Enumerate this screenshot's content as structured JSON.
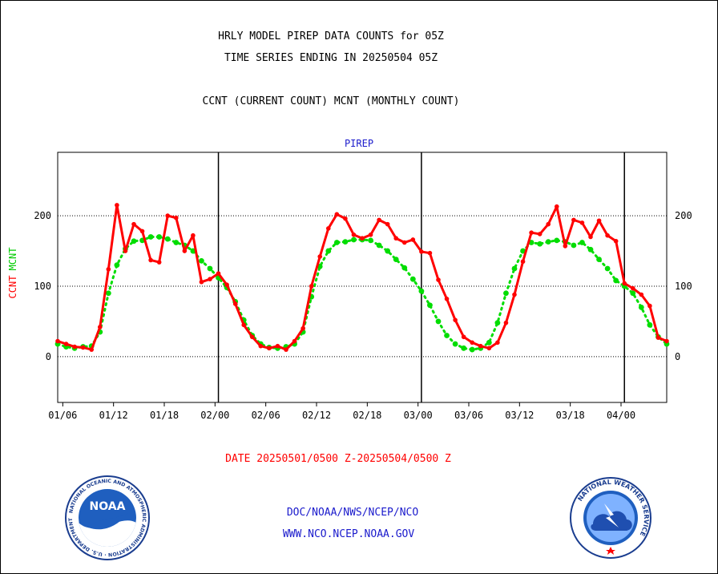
{
  "header": {
    "title_line1": "HRLY MODEL PIREP DATA COUNTS for 05Z",
    "title_line2": "TIME SERIES ENDING IN 20250504 05Z",
    "title_line3": "CCNT (CURRENT COUNT) MCNT (MONTHLY COUNT)",
    "plot_label": "PIREP"
  },
  "ylabel": {
    "ccnt": "CCNT",
    "mcnt": "MCNT"
  },
  "date_range": "DATE 20250501/0500 Z-20250504/0500 Z",
  "footer": {
    "line1": "DOC/NOAA/NWS/NCEP/NCO",
    "line2": "WWW.NCO.NCEP.NOAA.GOV",
    "noaa_logo_text": "NOAA",
    "noaa_ring_text": "NATIONAL OCEANIC AND ATMOSPHERIC ADMINISTRATION · U.S. DEPARTMENT OF COMMERCE",
    "nws_ring_text": "NATIONAL WEATHER SERVICE"
  },
  "colors": {
    "ccnt": "#ff0000",
    "mcnt": "#00dd00",
    "axis": "#000000",
    "text_blue": "#1a1acc"
  },
  "chart_data": {
    "type": "line",
    "xlim": [
      0,
      72
    ],
    "ylim": [
      -65,
      290
    ],
    "yticks": [
      0,
      100,
      200
    ],
    "ytick_labels": [
      "0",
      "100",
      "200"
    ],
    "xticks": [
      {
        "x": 0.6,
        "label": "01/06"
      },
      {
        "x": 6.6,
        "label": "01/12"
      },
      {
        "x": 12.6,
        "label": "01/18"
      },
      {
        "x": 18.6,
        "label": "02/00"
      },
      {
        "x": 24.6,
        "label": "02/06"
      },
      {
        "x": 30.6,
        "label": "02/12"
      },
      {
        "x": 36.6,
        "label": "02/18"
      },
      {
        "x": 42.6,
        "label": "03/00"
      },
      {
        "x": 48.6,
        "label": "03/06"
      },
      {
        "x": 54.6,
        "label": "03/12"
      },
      {
        "x": 60.6,
        "label": "03/18"
      },
      {
        "x": 66.6,
        "label": "04/00"
      }
    ],
    "day_boundaries": [
      19,
      43,
      67
    ],
    "grid_y": [
      0,
      100,
      200
    ],
    "series": [
      {
        "name": "CCNT",
        "color": "#ff0000",
        "x": [
          0,
          1,
          2,
          3,
          4,
          5,
          6,
          7,
          8,
          9,
          10,
          11,
          12,
          13,
          14,
          15,
          16,
          17,
          18,
          19,
          20,
          21,
          22,
          23,
          24,
          25,
          26,
          27,
          28,
          29,
          30,
          31,
          32,
          33,
          34,
          35,
          36,
          37,
          38,
          39,
          40,
          41,
          42,
          43,
          44,
          45,
          46,
          47,
          48,
          49,
          50,
          51,
          52,
          53,
          54,
          55,
          56,
          57,
          58,
          59,
          60,
          61,
          62,
          63,
          64,
          65,
          66,
          67,
          68,
          69,
          70,
          71,
          72
        ],
        "values": [
          22,
          18,
          14,
          13,
          10,
          42,
          124,
          215,
          150,
          188,
          178,
          137,
          134,
          200,
          197,
          150,
          172,
          106,
          110,
          118,
          102,
          75,
          45,
          28,
          15,
          12,
          15,
          10,
          22,
          40,
          100,
          142,
          182,
          202,
          196,
          173,
          168,
          173,
          194,
          188,
          168,
          162,
          166,
          149,
          147,
          109,
          82,
          52,
          28,
          20,
          15,
          12,
          20,
          48,
          88,
          135,
          176,
          174,
          188,
          213,
          157,
          194,
          190,
          170,
          193,
          172,
          164,
          104,
          97,
          88,
          72,
          27,
          22
        ]
      },
      {
        "name": "MCNT",
        "color": "#00dd00",
        "x": [
          0,
          1,
          2,
          3,
          4,
          5,
          6,
          7,
          8,
          9,
          10,
          11,
          12,
          13,
          14,
          15,
          16,
          17,
          18,
          19,
          20,
          21,
          22,
          23,
          24,
          25,
          26,
          27,
          28,
          29,
          30,
          31,
          32,
          33,
          34,
          35,
          36,
          37,
          38,
          39,
          40,
          41,
          42,
          43,
          44,
          45,
          46,
          47,
          48,
          49,
          50,
          51,
          52,
          53,
          54,
          55,
          56,
          57,
          58,
          59,
          60,
          61,
          62,
          63,
          64,
          65,
          66,
          67,
          68,
          69,
          70,
          71,
          72
        ],
        "values": [
          18,
          14,
          12,
          14,
          15,
          35,
          90,
          130,
          153,
          164,
          165,
          170,
          170,
          167,
          162,
          158,
          150,
          136,
          125,
          112,
          98,
          78,
          52,
          30,
          18,
          13,
          12,
          14,
          18,
          35,
          85,
          128,
          150,
          162,
          163,
          166,
          166,
          165,
          158,
          150,
          138,
          126,
          110,
          93,
          73,
          50,
          30,
          18,
          12,
          10,
          12,
          20,
          48,
          90,
          125,
          150,
          162,
          160,
          163,
          165,
          163,
          158,
          162,
          152,
          138,
          125,
          108,
          100,
          90,
          70,
          45,
          28,
          18
        ]
      }
    ]
  }
}
